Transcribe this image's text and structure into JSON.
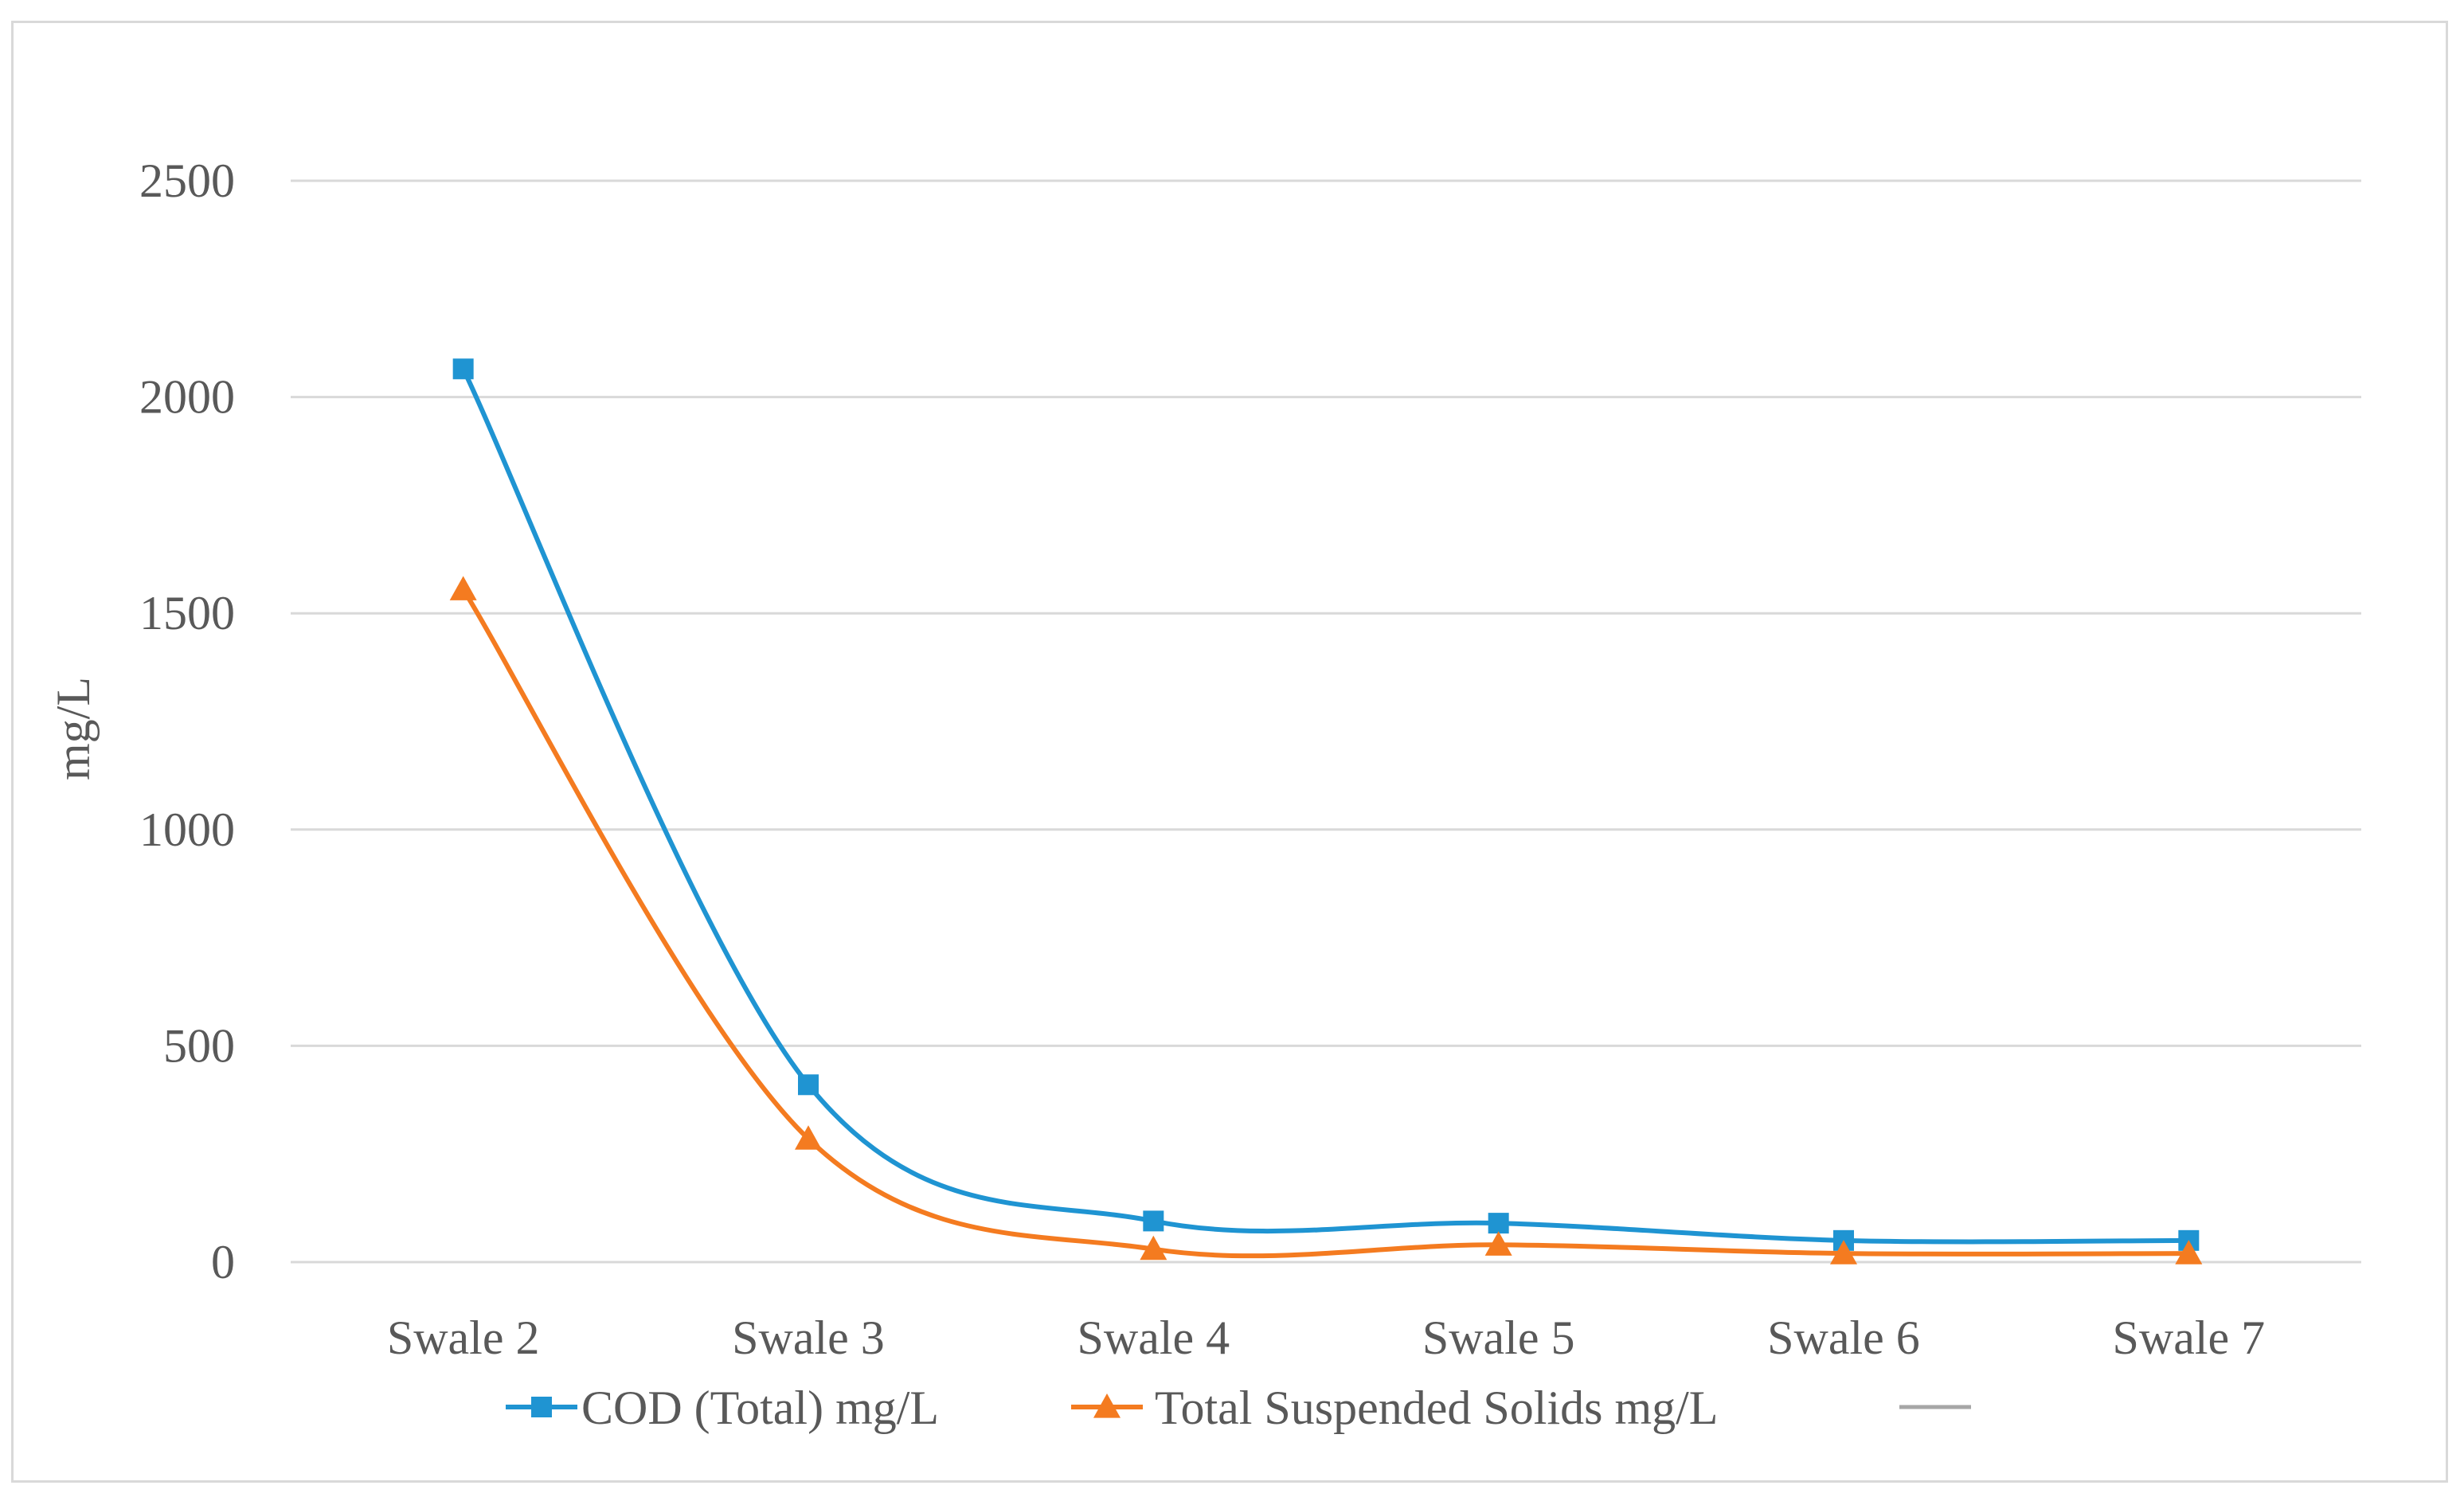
{
  "chart_data": {
    "type": "line",
    "title": "",
    "xlabel": "",
    "ylabel": "mg/L",
    "ylim": [
      0,
      2500
    ],
    "yticks": [
      0,
      500,
      1000,
      1500,
      2000,
      2500
    ],
    "grid": true,
    "legend_position": "bottom",
    "categories": [
      "Swale 2",
      "Swale 3",
      "Swale 4",
      "Swale 5",
      "Swale 6",
      "Swale 7"
    ],
    "series": [
      {
        "name": "COD (Total) mg/L",
        "color": "#1f94d2",
        "marker": "square",
        "smooth": true,
        "values": [
          2065,
          410,
          95,
          90,
          50,
          50
        ]
      },
      {
        "name": "Total Suspended Solids mg/L",
        "color": "#f47b20",
        "marker": "triangle",
        "smooth": true,
        "values": [
          1555,
          285,
          30,
          40,
          20,
          20
        ]
      }
    ],
    "legend_extra_line_color": "#a6a6a6"
  }
}
